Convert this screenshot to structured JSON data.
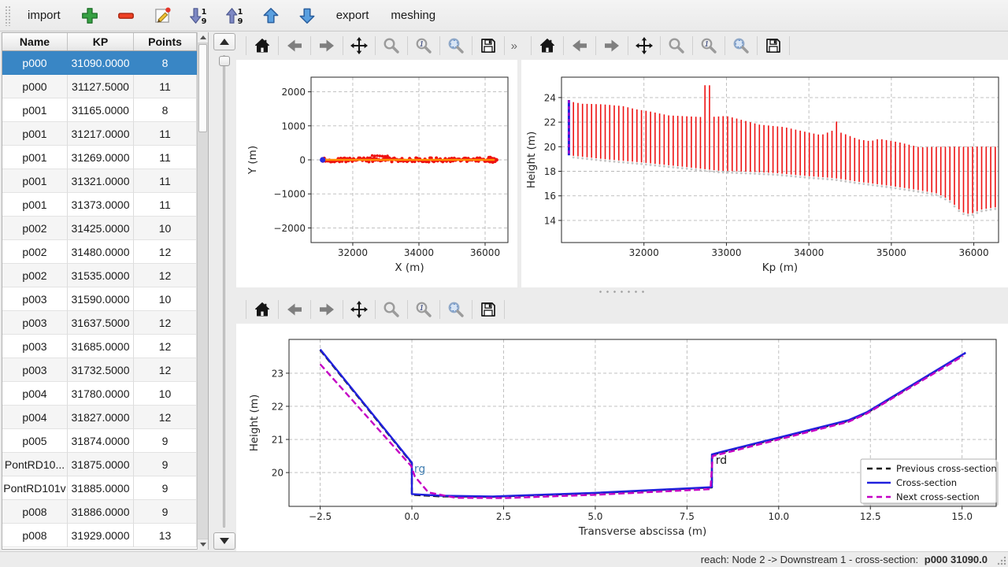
{
  "toolbar": {
    "import_label": "import",
    "export_label": "export",
    "meshing_label": "meshing",
    "icons": [
      "add-icon",
      "remove-icon",
      "edit-icon",
      "sort-ascending-icon",
      "sort-descending-icon",
      "move-up-icon",
      "move-down-icon"
    ]
  },
  "mpl_toolbar": {
    "icons": [
      "home-icon",
      "back-icon",
      "forward-icon",
      "pan-icon",
      "zoom-icon",
      "zoom-region-icon",
      "zoom-fit-icon",
      "save-icon"
    ],
    "overflow_label": "»"
  },
  "table": {
    "columns": [
      "Name",
      "KP",
      "Points"
    ],
    "selected_index": 0,
    "rows": [
      [
        "p000",
        "31090.0000",
        "8"
      ],
      [
        "p000",
        "31127.5000",
        "11"
      ],
      [
        "p001",
        "31165.0000",
        "8"
      ],
      [
        "p001",
        "31217.0000",
        "11"
      ],
      [
        "p001",
        "31269.0000",
        "11"
      ],
      [
        "p001",
        "31321.0000",
        "11"
      ],
      [
        "p001",
        "31373.0000",
        "11"
      ],
      [
        "p002",
        "31425.0000",
        "10"
      ],
      [
        "p002",
        "31480.0000",
        "12"
      ],
      [
        "p002",
        "31535.0000",
        "12"
      ],
      [
        "p003",
        "31590.0000",
        "10"
      ],
      [
        "p003",
        "31637.5000",
        "12"
      ],
      [
        "p003",
        "31685.0000",
        "12"
      ],
      [
        "p003",
        "31732.5000",
        "12"
      ],
      [
        "p004",
        "31780.0000",
        "10"
      ],
      [
        "p004",
        "31827.0000",
        "12"
      ],
      [
        "p005",
        "31874.0000",
        "9"
      ],
      [
        "PontRD10...",
        "31875.0000",
        "9"
      ],
      [
        "PontRD101v",
        "31885.0000",
        "9"
      ],
      [
        "p008",
        "31886.0000",
        "9"
      ],
      [
        "p008",
        "31929.0000",
        "13"
      ]
    ]
  },
  "status_bar": {
    "text": "reach: Node 2 -> Downstream 1 - cross-section: ",
    "highlight": "p000 31090.0"
  },
  "colors": {
    "selection": "#3986c5",
    "red": "#ee1111",
    "orange": "#ff8c00",
    "blue": "#2020dd",
    "magenta": "#c400c4"
  },
  "chart_data": [
    {
      "id": "plot-xy",
      "type": "scatter",
      "title": "",
      "xlabel": "X (m)",
      "ylabel": "Y (m)",
      "xlim": [
        30740,
        36690
      ],
      "ylim": [
        -2430,
        2430
      ],
      "xticks": [
        32000,
        34000,
        36000
      ],
      "yticks": [
        -2000,
        -1000,
        0,
        1000,
        2000
      ],
      "grid": true,
      "scatter": {
        "name": "cross-section points",
        "color": "#ee1111",
        "x_start": 31100,
        "x_end": 36300,
        "y": 0,
        "count": 136
      },
      "reach_line": {
        "name": "reach axis",
        "color": "#ff8c00",
        "x_start": 31100,
        "x_end": 36290,
        "y": 0
      },
      "current_point": {
        "name": "current cross-section",
        "color": "#2a2ae0",
        "x": 31090,
        "y": 0
      }
    },
    {
      "id": "plot-longitudinal",
      "type": "line-collection",
      "title": "",
      "xlabel": "Kp (m)",
      "ylabel": "Height (m)",
      "xlim": [
        31000,
        36300
      ],
      "ylim": [
        12.2,
        25.66
      ],
      "xticks": [
        32000,
        33000,
        34000,
        35000,
        36000
      ],
      "yticks": [
        14,
        16,
        18,
        20,
        22,
        24
      ],
      "grid": true,
      "line_color": "#ee1111",
      "kp_range": [
        31090,
        36290
      ],
      "kp_step": 55,
      "envelope_top": [
        [
          31090,
          23.7
        ],
        [
          31250,
          23.5
        ],
        [
          31500,
          23.45
        ],
        [
          31750,
          23.3
        ],
        [
          31900,
          23.05
        ],
        [
          32050,
          22.9
        ],
        [
          32300,
          22.55
        ],
        [
          32750,
          22.4
        ],
        [
          33000,
          22.5
        ],
        [
          33120,
          22.3
        ],
        [
          33400,
          21.8
        ],
        [
          33700,
          21.6
        ],
        [
          34000,
          21.15
        ],
        [
          34150,
          20.95
        ],
        [
          34300,
          21.35
        ],
        [
          34450,
          21.0
        ],
        [
          34600,
          20.6
        ],
        [
          34750,
          20.45
        ],
        [
          34850,
          20.65
        ],
        [
          35100,
          20.35
        ],
        [
          35350,
          19.95
        ],
        [
          35600,
          20.0
        ],
        [
          36300,
          20.0
        ]
      ],
      "envelope_bottom": [
        [
          31090,
          19.3
        ],
        [
          31500,
          19.0
        ],
        [
          32000,
          18.7
        ],
        [
          32500,
          18.35
        ],
        [
          32900,
          18.05
        ],
        [
          33300,
          17.95
        ],
        [
          33600,
          17.85
        ],
        [
          34000,
          17.6
        ],
        [
          34300,
          17.45
        ],
        [
          34600,
          17.15
        ],
        [
          35000,
          16.8
        ],
        [
          35300,
          16.5
        ],
        [
          35550,
          16.2
        ],
        [
          35700,
          15.7
        ],
        [
          35850,
          14.7
        ],
        [
          35950,
          14.5
        ],
        [
          36100,
          14.9
        ],
        [
          36300,
          15.1
        ]
      ],
      "spikes": [
        [
          32790,
          25.0,
          55
        ],
        [
          34360,
          22.05,
          28
        ]
      ],
      "current": {
        "kp": 31090,
        "bottom": 19.3,
        "top": 23.8,
        "color": "#2020dd",
        "overlay_color": "#c400c4"
      }
    },
    {
      "id": "plot-cross-section",
      "type": "line",
      "title": "",
      "xlabel": "Transverse abscissa (m)",
      "ylabel": "Height (m)",
      "xlim": [
        -3.35,
        15.93
      ],
      "ylim": [
        18.98,
        24.02
      ],
      "xticks": [
        -2.5,
        0.0,
        2.5,
        5.0,
        7.5,
        10.0,
        12.5,
        15.0
      ],
      "yticks": [
        20,
        21,
        22,
        23
      ],
      "grid": true,
      "legend_position": "lower right",
      "annotations": [
        {
          "text": "rg",
          "x": 0.06,
          "y": 20.0,
          "color": "#4682b4"
        },
        {
          "text": "rd",
          "x": 8.28,
          "y": 20.26,
          "color": "#1a1a1a"
        }
      ],
      "series": [
        {
          "name": "Previous cross-section",
          "color": "#111111",
          "dash": true,
          "points": [
            [
              -2.5,
              23.7
            ],
            [
              0,
              20.28
            ],
            [
              0,
              19.33
            ],
            [
              0.8,
              19.28
            ],
            [
              2.2,
              19.27
            ],
            [
              5,
              19.38
            ],
            [
              8.18,
              19.55
            ],
            [
              8.18,
              20.53
            ],
            [
              8.45,
              20.61
            ],
            [
              11.9,
              21.56
            ],
            [
              12.4,
              21.8
            ],
            [
              15.08,
              23.6
            ]
          ]
        },
        {
          "name": "Cross-section",
          "color": "#2020dd",
          "dash": false,
          "points": [
            [
              -2.5,
              23.72
            ],
            [
              0,
              20.3
            ],
            [
              0,
              19.35
            ],
            [
              0.8,
              19.3
            ],
            [
              2.2,
              19.28
            ],
            [
              5,
              19.39
            ],
            [
              8.18,
              19.56
            ],
            [
              8.18,
              20.55
            ],
            [
              8.45,
              20.63
            ],
            [
              11.9,
              21.58
            ],
            [
              12.4,
              21.82
            ],
            [
              15.1,
              23.62
            ]
          ]
        },
        {
          "name": "Next cross-section",
          "color": "#c400c4",
          "dash": true,
          "points": [
            [
              -2.5,
              23.27
            ],
            [
              -0.02,
              20.2
            ],
            [
              0.08,
              19.88
            ],
            [
              0.45,
              19.4
            ],
            [
              1.2,
              19.24
            ],
            [
              2.5,
              19.23
            ],
            [
              5,
              19.33
            ],
            [
              8.14,
              19.5
            ],
            [
              8.2,
              20.5
            ],
            [
              8.5,
              20.58
            ],
            [
              11.9,
              21.53
            ],
            [
              12.4,
              21.78
            ],
            [
              15.03,
              23.52
            ]
          ]
        }
      ]
    }
  ]
}
